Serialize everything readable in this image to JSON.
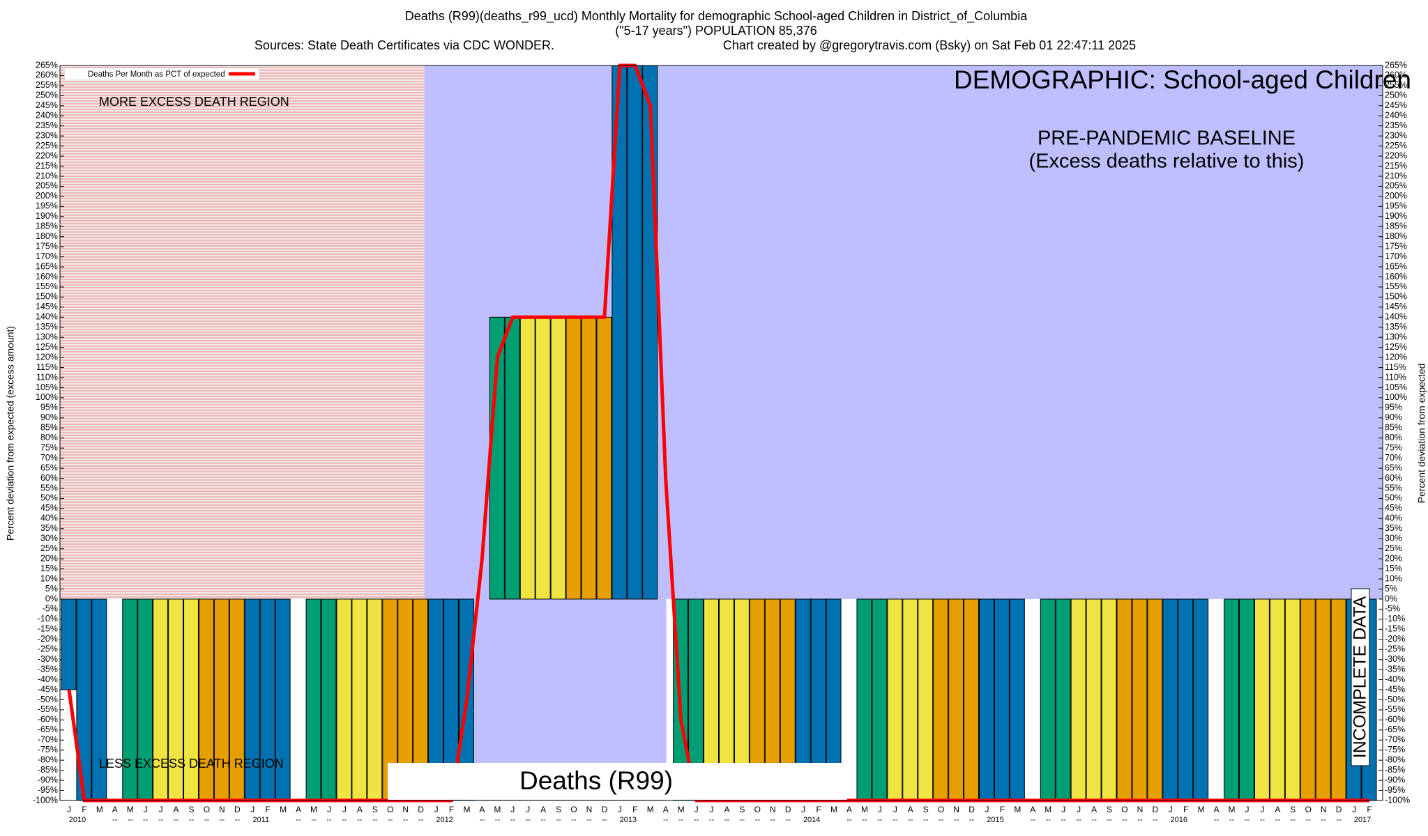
{
  "chart_data": {
    "type": "bar",
    "title": "Deaths (R99)(deaths_r99_ucd) Monthly Mortality for demographic School-aged Children in District_of_Columbia",
    "subtitle": "(\"5-17 years\") POPULATION 85,376",
    "sources": "Sources: State Death Certificates via CDC WONDER.",
    "credit": "Chart created by @gregorytravis.com (Bsky) on Sat Feb 01 22:47:11 2025",
    "y_label": "Percent deviation from expected (excess amount)",
    "y2_label": "Percent deviation from expected",
    "annotations": {
      "more_excess": "MORE EXCESS DEATH REGION",
      "less_excess": "LESS EXCESS DEATH REGION",
      "demographic": "DEMOGRAPHIC: School-aged Children",
      "baseline": "PRE-PANDEMIC BASELINE",
      "baseline_note": "(Excess deaths relative to this)",
      "cause": "Deaths (R99)",
      "incomplete": "INCOMPLETE DATA"
    },
    "categories": [
      "J",
      "F",
      "M",
      "A",
      "M",
      "J",
      "J",
      "A",
      "S",
      "O",
      "N",
      "D",
      "J",
      "F",
      "M",
      "A",
      "M",
      "J",
      "J",
      "A",
      "S",
      "O",
      "N",
      "D",
      "J",
      "F",
      "M",
      "A",
      "M",
      "J",
      "J",
      "A",
      "S",
      "O",
      "N",
      "D",
      "J",
      "F",
      "M",
      "A",
      "M",
      "J",
      "J",
      "A",
      "S",
      "O",
      "N",
      "D",
      "J",
      "F",
      "M",
      "A",
      "M",
      "J",
      "J",
      "A",
      "S",
      "O",
      "N",
      "D",
      "J",
      "F",
      "M",
      "A",
      "M",
      "J",
      "J",
      "A",
      "S",
      "O",
      "N",
      "D",
      "J",
      "F",
      "M",
      "A",
      "M",
      "J",
      "J",
      "A",
      "S",
      "O",
      "N",
      "D",
      "J",
      "F"
    ],
    "x_sublabels": [
      "2010",
      null,
      null,
      "--",
      "--",
      "--",
      "--",
      "--",
      "--",
      "--",
      "--",
      "--",
      "2011",
      null,
      null,
      "--",
      "--",
      "--",
      "--",
      "--",
      "--",
      "--",
      "--",
      "--",
      "2012",
      null,
      null,
      "--",
      "--",
      "--",
      "--",
      "--",
      "--",
      "--",
      "--",
      "--",
      "2013",
      null,
      null,
      "--",
      "--",
      "--",
      "--",
      "--",
      "--",
      "--",
      "--",
      "--",
      "2014",
      null,
      null,
      "--",
      "--",
      "--",
      "--",
      "--",
      "--",
      "--",
      "--",
      "--",
      "2015",
      null,
      null,
      "--",
      "--",
      "--",
      "--",
      "--",
      "--",
      "--",
      "--",
      "--",
      "2016",
      null,
      null,
      "--",
      "--",
      "--",
      "--",
      "--",
      "--",
      "--",
      "--",
      "--",
      "2017",
      null
    ],
    "series": [
      {
        "month_colors": [
          "#0072b2",
          "#0072b2",
          "#0072b2",
          "#009e73",
          "#009e73",
          "#009e73",
          "#f0e442",
          "#f0e442",
          "#f0e442",
          "#e69f00",
          "#e69f00",
          "#e69f00"
        ],
        "values": [
          -45,
          -100,
          -100,
          null,
          -100,
          -100,
          -100,
          -100,
          -100,
          -100,
          -100,
          -100,
          -100,
          -100,
          -100,
          null,
          -100,
          -100,
          -100,
          -100,
          -100,
          -100,
          -100,
          -100,
          -100,
          -100,
          -100,
          null,
          140,
          140,
          140,
          140,
          140,
          140,
          140,
          140,
          265,
          265,
          265,
          null,
          -100,
          -100,
          -100,
          -100,
          -100,
          -100,
          -100,
          -100,
          -100,
          -100,
          -100,
          null,
          -100,
          -100,
          -100,
          -100,
          -100,
          -100,
          -100,
          -100,
          -100,
          -100,
          -100,
          null,
          -100,
          -100,
          -100,
          -100,
          -100,
          -100,
          -100,
          -100,
          -100,
          -100,
          -100,
          null,
          -100,
          -100,
          -100,
          -100,
          -100,
          -100,
          -100,
          -100,
          -100,
          -100
        ]
      },
      {
        "name": "Deaths Per Month as PCT of expected",
        "color": "#ff0000",
        "type": "line",
        "values": [
          -45,
          -100,
          -100,
          -100,
          -100,
          -100,
          -100,
          -100,
          -100,
          -100,
          -100,
          -100,
          -100,
          -100,
          -100,
          -100,
          -100,
          -100,
          -100,
          -100,
          -100,
          -100,
          -100,
          -100,
          -100,
          -100,
          -50,
          20,
          120,
          140,
          140,
          140,
          140,
          140,
          140,
          140,
          265,
          265,
          245,
          60,
          -60,
          -100,
          -100,
          -100,
          -100,
          -100,
          -100,
          -100,
          -100,
          -100,
          -100,
          -100,
          -100,
          -100,
          -100,
          -100,
          -100,
          -100,
          -100,
          -100,
          -100,
          -100,
          -100,
          -100,
          -100,
          -100,
          -100,
          -100,
          -100,
          -100,
          -100,
          -100,
          -100,
          -100,
          -100,
          -100,
          -100,
          -100,
          -100,
          -100,
          -100,
          -100,
          -100,
          -100,
          -100,
          -100
        ]
      }
    ],
    "ylim": [
      -100,
      265
    ],
    "yticks": [
      {
        "value": -100,
        "label": "-100%"
      },
      {
        "value": -95,
        "label": "-95%"
      },
      {
        "value": -90,
        "label": "-90%"
      },
      {
        "value": -85,
        "label": "-85%"
      },
      {
        "value": -80,
        "label": "-80%"
      },
      {
        "value": -75,
        "label": "-75%"
      },
      {
        "value": -70,
        "label": "-70%"
      },
      {
        "value": -65,
        "label": "-65%"
      },
      {
        "value": -60,
        "label": "-60%"
      },
      {
        "value": -55,
        "label": "-55%"
      },
      {
        "value": -50,
        "label": "-50%"
      },
      {
        "value": -45,
        "label": "-45%"
      },
      {
        "value": -40,
        "label": "-40%"
      },
      {
        "value": -35,
        "label": "-35%"
      },
      {
        "value": -30,
        "label": "-30%"
      },
      {
        "value": -25,
        "label": "-25%"
      },
      {
        "value": -20,
        "label": "-20%"
      },
      {
        "value": -15,
        "label": "-15%"
      },
      {
        "value": -10,
        "label": "-10%"
      },
      {
        "value": -5,
        "label": "-5%"
      },
      {
        "value": 0,
        "label": "0%"
      },
      {
        "value": 5,
        "label": "5%"
      },
      {
        "value": 10,
        "label": "10%"
      },
      {
        "value": 15,
        "label": "15%"
      },
      {
        "value": 20,
        "label": "20%"
      },
      {
        "value": 25,
        "label": "25%"
      },
      {
        "value": 30,
        "label": "30%"
      },
      {
        "value": 35,
        "label": "35%"
      },
      {
        "value": 40,
        "label": "40%"
      },
      {
        "value": 45,
        "label": "45%"
      },
      {
        "value": 50,
        "label": "50%"
      },
      {
        "value": 55,
        "label": "55%"
      },
      {
        "value": 60,
        "label": "60%"
      },
      {
        "value": 65,
        "label": "65%"
      },
      {
        "value": 70,
        "label": "70%"
      },
      {
        "value": 75,
        "label": "75%"
      },
      {
        "value": 80,
        "label": "80%"
      },
      {
        "value": 85,
        "label": "85%"
      },
      {
        "value": 90,
        "label": "90%"
      },
      {
        "value": 95,
        "label": "95%"
      },
      {
        "value": 100,
        "label": "100%"
      },
      {
        "value": 105,
        "label": "105%"
      },
      {
        "value": 110,
        "label": "110%"
      },
      {
        "value": 115,
        "label": "115%"
      },
      {
        "value": 120,
        "label": "120%"
      },
      {
        "value": 125,
        "label": "125%"
      },
      {
        "value": 130,
        "label": "130%"
      },
      {
        "value": 135,
        "label": "135%"
      },
      {
        "value": 140,
        "label": "140%"
      },
      {
        "value": 145,
        "label": "145%"
      },
      {
        "value": 150,
        "label": "150%"
      },
      {
        "value": 155,
        "label": "155%"
      },
      {
        "value": 160,
        "label": "160%"
      },
      {
        "value": 165,
        "label": "165%"
      },
      {
        "value": 170,
        "label": "170%"
      },
      {
        "value": 175,
        "label": "175%"
      },
      {
        "value": 180,
        "label": "180%"
      },
      {
        "value": 185,
        "label": "185%"
      },
      {
        "value": 190,
        "label": "190%"
      },
      {
        "value": 195,
        "label": "195%"
      },
      {
        "value": 200,
        "label": "200%"
      },
      {
        "value": 205,
        "label": "205%"
      },
      {
        "value": 210,
        "label": "210%"
      },
      {
        "value": 215,
        "label": "215%"
      },
      {
        "value": 220,
        "label": "220%"
      },
      {
        "value": 225,
        "label": "225%"
      },
      {
        "value": 230,
        "label": "230%"
      },
      {
        "value": 235,
        "label": "235%"
      },
      {
        "value": 240,
        "label": "240%"
      },
      {
        "value": 245,
        "label": "245%"
      },
      {
        "value": 250,
        "label": "250%"
      },
      {
        "value": 255,
        "label": "255%"
      },
      {
        "value": 260,
        "label": "260%"
      },
      {
        "value": 265,
        "label": "265%"
      }
    ],
    "legend": "top-left"
  }
}
